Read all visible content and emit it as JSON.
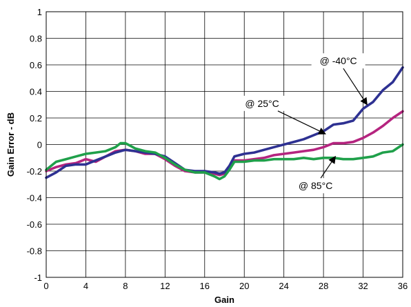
{
  "chart_data": {
    "type": "line",
    "title": "",
    "xlabel": "Gain",
    "ylabel": "Gain Error - dB",
    "xlim": [
      0,
      36
    ],
    "ylim": [
      -1,
      1
    ],
    "x_ticks": [
      0,
      4,
      8,
      12,
      16,
      20,
      24,
      28,
      32,
      36
    ],
    "y_ticks": [
      1,
      0.8,
      0.6,
      0.4,
      0.2,
      0,
      -0.2,
      -0.4,
      -0.6,
      -0.8,
      -1
    ],
    "y_tick_labels": [
      "1",
      "0.8",
      "0.6",
      "0.4",
      "0.2",
      "0",
      "-0.2",
      "-0.4",
      "-0.6",
      "-0.8",
      "-1"
    ],
    "grid": true,
    "legend": "none",
    "series": [
      {
        "name": "@ -40°C",
        "color": "#2e3192",
        "x": [
          0,
          1,
          2,
          3,
          4,
          5,
          6,
          7,
          8,
          9,
          10,
          11,
          12,
          13,
          14,
          15,
          16,
          17,
          17.5,
          18,
          18.5,
          19,
          20,
          21,
          22,
          23,
          24,
          25,
          26,
          27,
          28,
          29,
          30,
          31,
          32,
          33,
          34,
          35,
          36
        ],
        "y": [
          -0.25,
          -0.21,
          -0.16,
          -0.15,
          -0.15,
          -0.12,
          -0.09,
          -0.06,
          -0.04,
          -0.05,
          -0.06,
          -0.07,
          -0.09,
          -0.14,
          -0.19,
          -0.2,
          -0.2,
          -0.21,
          -0.22,
          -0.21,
          -0.16,
          -0.09,
          -0.07,
          -0.06,
          -0.04,
          -0.02,
          0.0,
          0.02,
          0.04,
          0.07,
          0.1,
          0.15,
          0.16,
          0.18,
          0.27,
          0.32,
          0.41,
          0.47,
          0.58
        ]
      },
      {
        "name": "@ 25°C",
        "color": "#b5247f",
        "x": [
          0,
          1,
          2,
          3,
          4,
          5,
          6,
          7,
          8,
          9,
          10,
          11,
          12,
          13,
          14,
          15,
          16,
          17,
          17.5,
          18,
          18.5,
          19,
          20,
          21,
          22,
          23,
          24,
          25,
          26,
          27,
          28,
          29,
          30,
          31,
          32,
          33,
          34,
          35,
          36
        ],
        "y": [
          -0.2,
          -0.17,
          -0.15,
          -0.14,
          -0.11,
          -0.13,
          -0.09,
          -0.05,
          -0.04,
          -0.05,
          -0.07,
          -0.07,
          -0.11,
          -0.16,
          -0.2,
          -0.21,
          -0.21,
          -0.22,
          -0.23,
          -0.22,
          -0.18,
          -0.12,
          -0.12,
          -0.11,
          -0.1,
          -0.08,
          -0.07,
          -0.06,
          -0.05,
          -0.04,
          -0.02,
          0.01,
          0.01,
          0.02,
          0.05,
          0.09,
          0.14,
          0.2,
          0.25
        ]
      },
      {
        "name": "@ 85°C",
        "color": "#1fa04a",
        "x": [
          0,
          1,
          2,
          3,
          4,
          5,
          6,
          7,
          7.5,
          8,
          8.5,
          9,
          10,
          11,
          12,
          13,
          14,
          15,
          16,
          17,
          17.5,
          18,
          18.5,
          19,
          20,
          21,
          22,
          23,
          24,
          25,
          26,
          27,
          28,
          29,
          30,
          31,
          32,
          33,
          34,
          35,
          36
        ],
        "y": [
          -0.19,
          -0.13,
          -0.11,
          -0.09,
          -0.07,
          -0.06,
          -0.05,
          -0.02,
          0.01,
          0.01,
          -0.01,
          -0.03,
          -0.05,
          -0.06,
          -0.1,
          -0.15,
          -0.19,
          -0.21,
          -0.21,
          -0.24,
          -0.26,
          -0.24,
          -0.19,
          -0.13,
          -0.13,
          -0.12,
          -0.12,
          -0.11,
          -0.11,
          -0.11,
          -0.1,
          -0.11,
          -0.1,
          -0.1,
          -0.11,
          -0.11,
          -0.1,
          -0.09,
          -0.06,
          -0.05,
          0.0
        ]
      }
    ],
    "annotations": [
      {
        "text": "@ -40°C",
        "series": 0,
        "box_at": [
          29.5,
          0.63
        ],
        "arrow_to": [
          32.4,
          0.3
        ]
      },
      {
        "text": "@ 25°C",
        "series": 1,
        "box_at": [
          21.8,
          0.31
        ],
        "arrow_to": [
          28.2,
          0.08
        ]
      },
      {
        "text": "@ 85°C",
        "series": 2,
        "box_at": [
          27.2,
          -0.31
        ],
        "arrow_to": [
          29.2,
          -0.09
        ]
      }
    ]
  }
}
